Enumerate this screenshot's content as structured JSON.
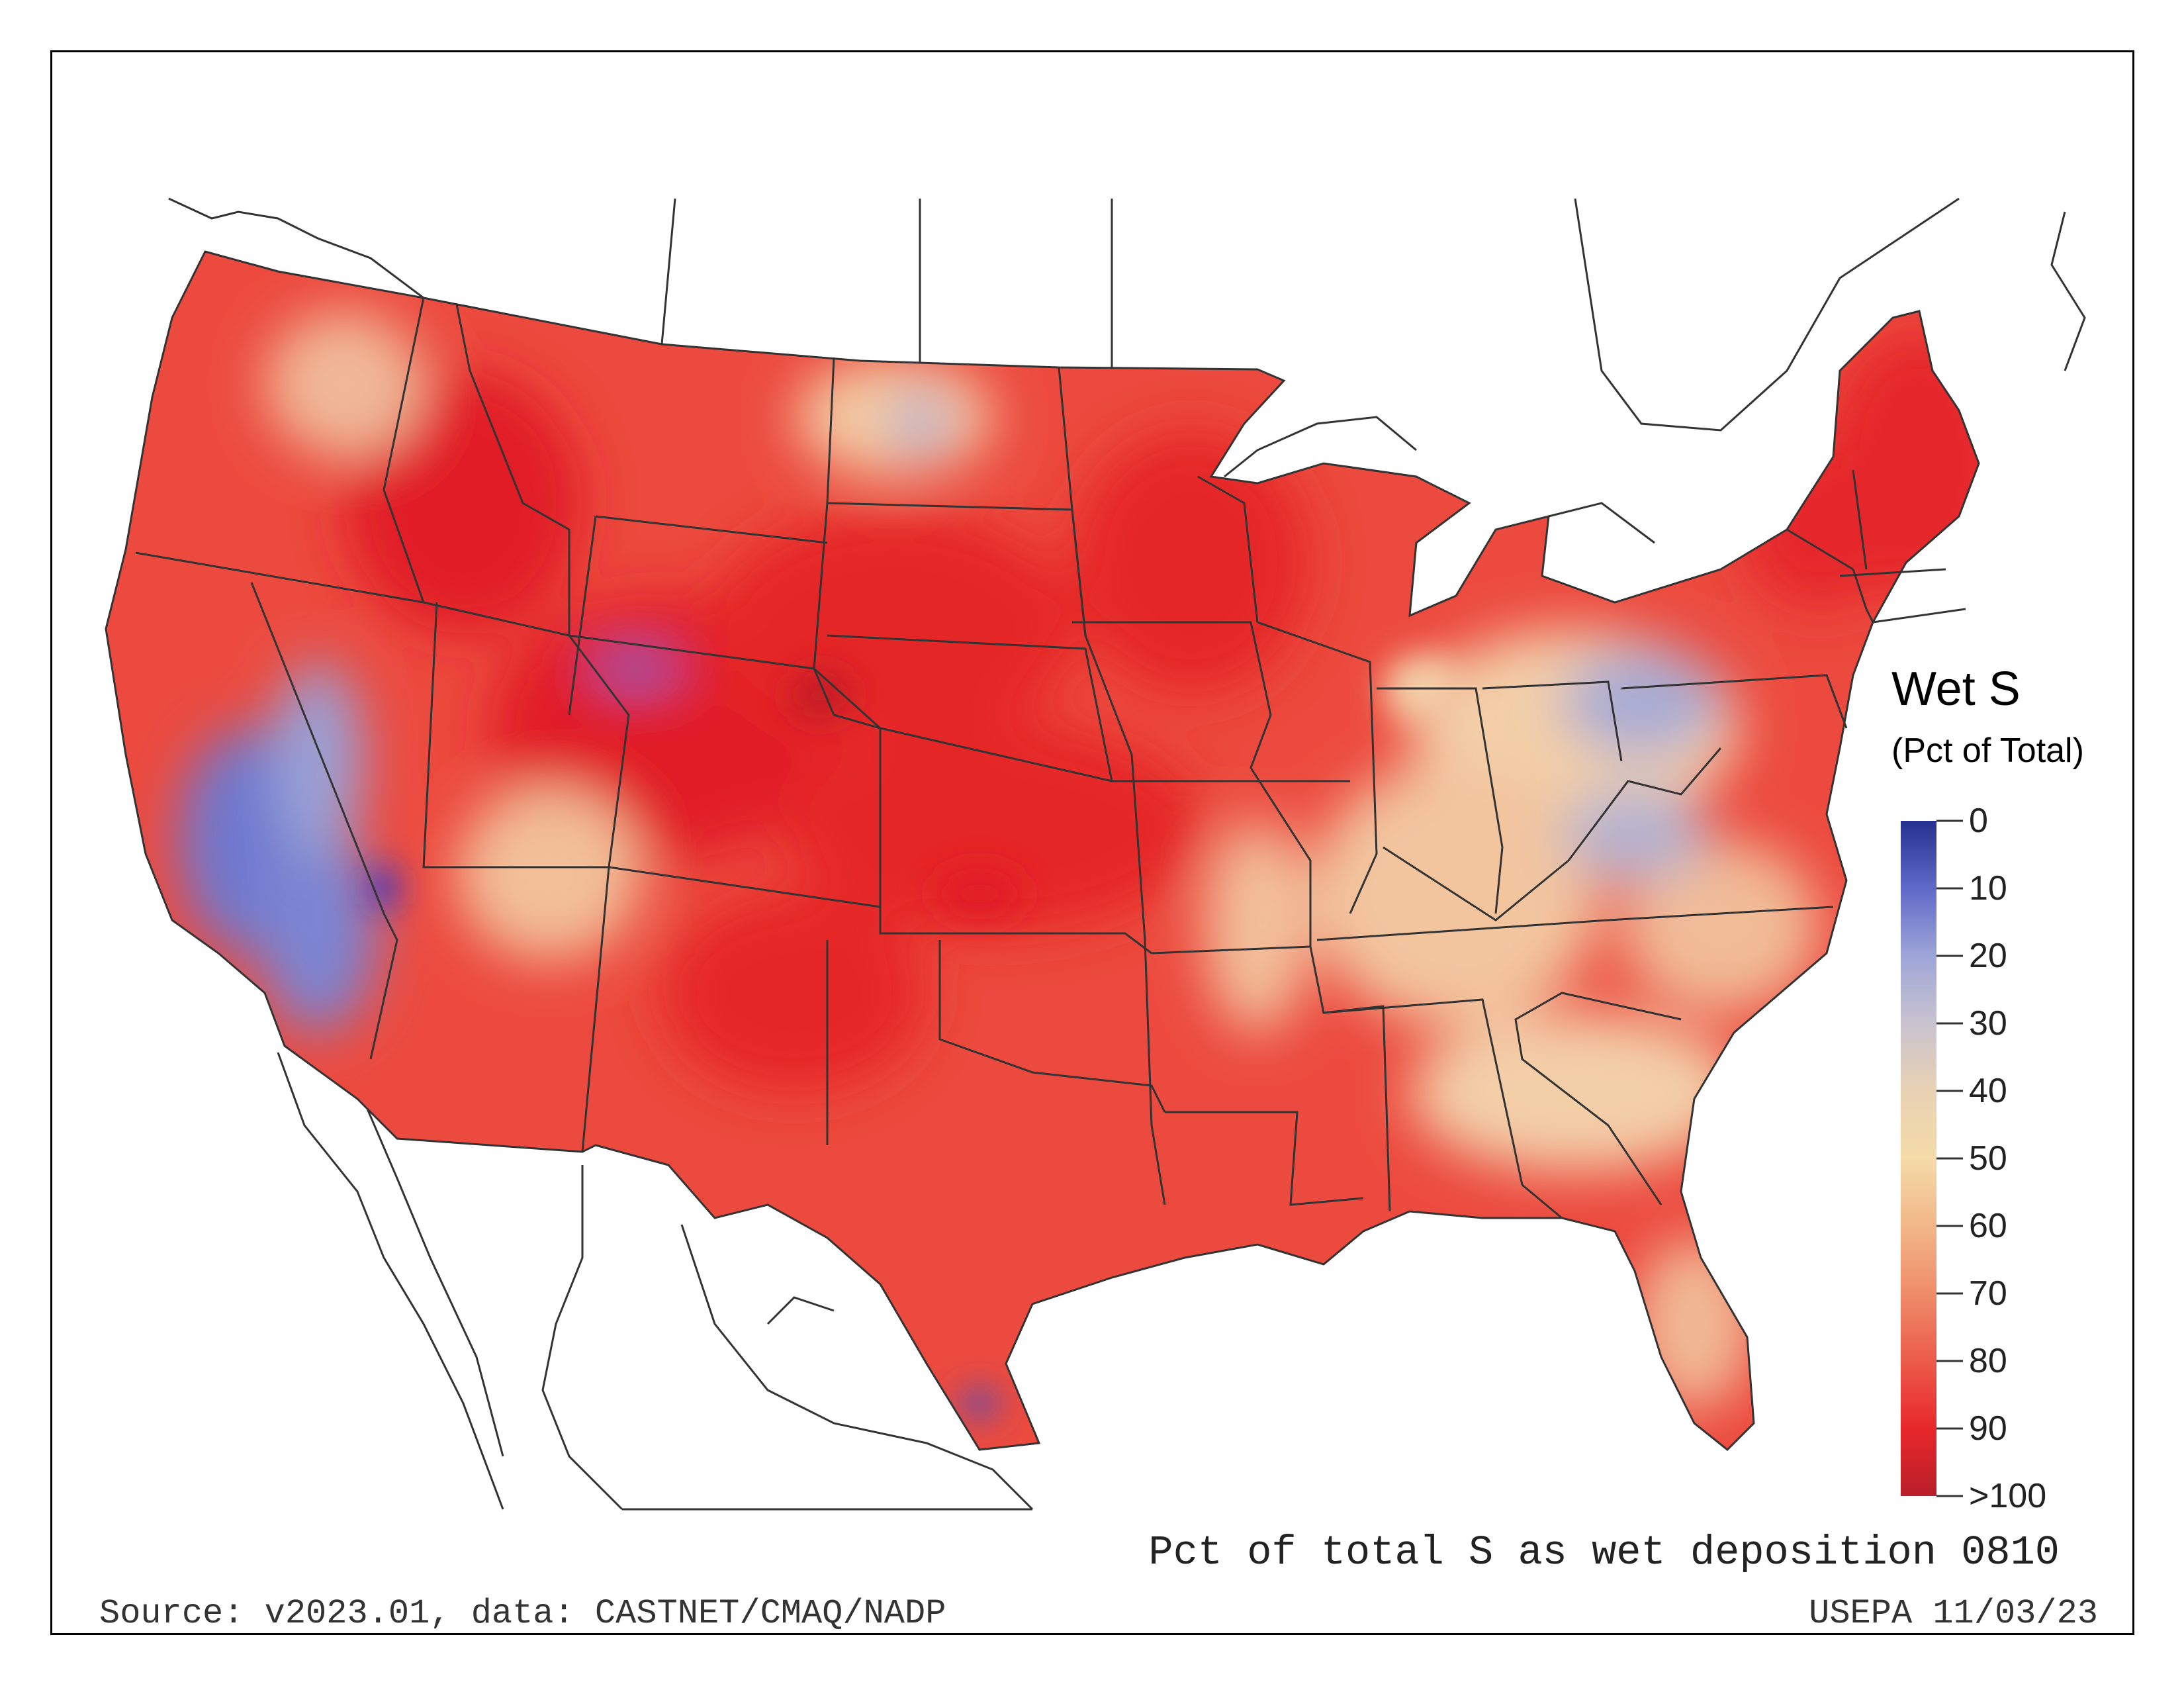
{
  "legend": {
    "title": "Wet S",
    "subtitle": "(Pct of Total)",
    "ticks": [
      "0",
      "10",
      "20",
      "30",
      "40",
      "50",
      "60",
      "70",
      "80",
      "90",
      ">100"
    ],
    "colors": [
      "#26308f",
      "#5f69c8",
      "#9ea5d8",
      "#c9c3cf",
      "#e8d2b4",
      "#f5dba8",
      "#f2b688",
      "#ef8c6a",
      "#ec5b4a",
      "#e8282b",
      "#b81e2a"
    ]
  },
  "caption": "Pct of total S as wet deposition 0810",
  "source": "Source: v2023.01, data: CASTNET/CMAQ/NADP",
  "stamp": "USEPA 11/03/23",
  "map_colors": {
    "dominant": "#ec4a3e",
    "deep_red": "#e32328",
    "low_blue": "#7f88d4",
    "mid_tan": "#f3d3a6",
    "land_outside": "#ffffff",
    "border": "#333333"
  }
}
